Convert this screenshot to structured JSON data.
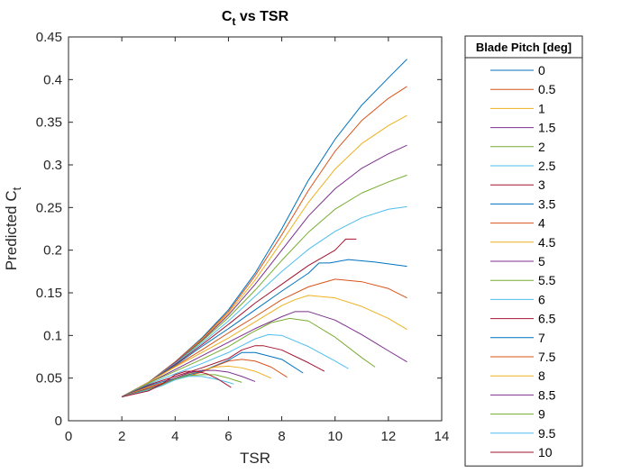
{
  "chart_data": {
    "type": "line",
    "title": "C",
    "title_subscript": "t",
    "title_suffix": " vs TSR",
    "xlabel": "TSR",
    "ylabel": "Predicted C",
    "ylabel_subscript": "t",
    "xlim": [
      0,
      14
    ],
    "ylim": [
      0,
      0.45
    ],
    "x_ticks": [
      0,
      2,
      4,
      6,
      8,
      10,
      12,
      14
    ],
    "y_ticks": [
      0,
      0.05,
      0.1,
      0.15,
      0.2,
      0.25,
      0.3,
      0.35,
      0.4,
      0.45
    ],
    "grid": false,
    "legend": {
      "title": "Blade Pitch [deg]",
      "placement": "outside-right"
    },
    "series": [
      {
        "name": "0",
        "color": "#0072BD",
        "points": [
          [
            2,
            0.028
          ],
          [
            3,
            0.045
          ],
          [
            4,
            0.069
          ],
          [
            5,
            0.097
          ],
          [
            6,
            0.13
          ],
          [
            7,
            0.173
          ],
          [
            8,
            0.225
          ],
          [
            9,
            0.282
          ],
          [
            10,
            0.33
          ],
          [
            11,
            0.37
          ],
          [
            12,
            0.402
          ],
          [
            12.7,
            0.424
          ]
        ]
      },
      {
        "name": "0.5",
        "color": "#D95319",
        "points": [
          [
            2,
            0.028
          ],
          [
            3,
            0.045
          ],
          [
            4,
            0.069
          ],
          [
            5,
            0.096
          ],
          [
            6,
            0.128
          ],
          [
            7,
            0.17
          ],
          [
            8,
            0.218
          ],
          [
            9,
            0.27
          ],
          [
            10,
            0.316
          ],
          [
            11,
            0.352
          ],
          [
            12,
            0.378
          ],
          [
            12.7,
            0.392
          ]
        ]
      },
      {
        "name": "1",
        "color": "#EDB120",
        "points": [
          [
            2,
            0.028
          ],
          [
            3,
            0.045
          ],
          [
            4,
            0.068
          ],
          [
            5,
            0.095
          ],
          [
            6,
            0.126
          ],
          [
            7,
            0.165
          ],
          [
            8,
            0.21
          ],
          [
            9,
            0.256
          ],
          [
            10,
            0.295
          ],
          [
            11,
            0.325
          ],
          [
            12,
            0.346
          ],
          [
            12.7,
            0.358
          ]
        ]
      },
      {
        "name": "1.5",
        "color": "#7E2F8E",
        "points": [
          [
            2,
            0.028
          ],
          [
            3,
            0.045
          ],
          [
            4,
            0.068
          ],
          [
            5,
            0.094
          ],
          [
            6,
            0.124
          ],
          [
            7,
            0.16
          ],
          [
            8,
            0.2
          ],
          [
            9,
            0.24
          ],
          [
            10,
            0.272
          ],
          [
            11,
            0.296
          ],
          [
            12,
            0.313
          ],
          [
            12.7,
            0.323
          ]
        ]
      },
      {
        "name": "2",
        "color": "#77AC30",
        "points": [
          [
            2,
            0.028
          ],
          [
            3,
            0.045
          ],
          [
            4,
            0.067
          ],
          [
            5,
            0.093
          ],
          [
            6,
            0.121
          ],
          [
            7,
            0.153
          ],
          [
            8,
            0.188
          ],
          [
            9,
            0.221
          ],
          [
            10,
            0.248
          ],
          [
            11,
            0.267
          ],
          [
            12,
            0.28
          ],
          [
            12.7,
            0.288
          ]
        ]
      },
      {
        "name": "2.5",
        "color": "#4DBEEE",
        "points": [
          [
            2,
            0.028
          ],
          [
            3,
            0.045
          ],
          [
            4,
            0.067
          ],
          [
            5,
            0.091
          ],
          [
            6,
            0.117
          ],
          [
            7,
            0.146
          ],
          [
            8,
            0.175
          ],
          [
            9,
            0.201
          ],
          [
            10,
            0.222
          ],
          [
            11,
            0.238
          ],
          [
            12,
            0.248
          ],
          [
            12.7,
            0.251
          ]
        ]
      },
      {
        "name": "3",
        "color": "#A2142F",
        "points": [
          [
            2,
            0.028
          ],
          [
            3,
            0.045
          ],
          [
            4,
            0.066
          ],
          [
            5,
            0.089
          ],
          [
            6,
            0.113
          ],
          [
            7,
            0.138
          ],
          [
            8,
            0.16
          ],
          [
            9,
            0.182
          ],
          [
            10,
            0.2
          ],
          [
            10.4,
            0.213
          ],
          [
            10.8,
            0.213
          ]
        ]
      },
      {
        "name": "3.5",
        "color": "#0072BD",
        "points": [
          [
            2,
            0.028
          ],
          [
            3,
            0.045
          ],
          [
            4,
            0.065
          ],
          [
            5,
            0.087
          ],
          [
            6,
            0.108
          ],
          [
            7,
            0.13
          ],
          [
            8,
            0.152
          ],
          [
            9,
            0.173
          ],
          [
            9.4,
            0.185
          ],
          [
            9.8,
            0.185
          ],
          [
            10.5,
            0.189
          ],
          [
            11.5,
            0.186
          ],
          [
            12.7,
            0.181
          ]
        ]
      },
      {
        "name": "4",
        "color": "#D95319",
        "points": [
          [
            2,
            0.028
          ],
          [
            3,
            0.045
          ],
          [
            4,
            0.064
          ],
          [
            5,
            0.083
          ],
          [
            6,
            0.103
          ],
          [
            7,
            0.122
          ],
          [
            8,
            0.142
          ],
          [
            9,
            0.157
          ],
          [
            10,
            0.166
          ],
          [
            11,
            0.163
          ],
          [
            12,
            0.155
          ],
          [
            12.7,
            0.144
          ]
        ]
      },
      {
        "name": "4.5",
        "color": "#EDB120",
        "points": [
          [
            2,
            0.028
          ],
          [
            3,
            0.045
          ],
          [
            4,
            0.063
          ],
          [
            5,
            0.08
          ],
          [
            6,
            0.097
          ],
          [
            7,
            0.116
          ],
          [
            8,
            0.135
          ],
          [
            8.5,
            0.142
          ],
          [
            9,
            0.147
          ],
          [
            10,
            0.144
          ],
          [
            11,
            0.134
          ],
          [
            12,
            0.12
          ],
          [
            12.7,
            0.107
          ]
        ]
      },
      {
        "name": "5",
        "color": "#7E2F8E",
        "points": [
          [
            2,
            0.028
          ],
          [
            3,
            0.044
          ],
          [
            4,
            0.06
          ],
          [
            5,
            0.076
          ],
          [
            6,
            0.092
          ],
          [
            7,
            0.108
          ],
          [
            8,
            0.122
          ],
          [
            8.5,
            0.128
          ],
          [
            9,
            0.128
          ],
          [
            10,
            0.118
          ],
          [
            11,
            0.101
          ],
          [
            12,
            0.082
          ],
          [
            12.7,
            0.069
          ]
        ]
      },
      {
        "name": "5.5",
        "color": "#77AC30",
        "points": [
          [
            2,
            0.028
          ],
          [
            3,
            0.044
          ],
          [
            4,
            0.058
          ],
          [
            5,
            0.072
          ],
          [
            6,
            0.087
          ],
          [
            6.8,
            0.102
          ],
          [
            7.6,
            0.115
          ],
          [
            8.3,
            0.12
          ],
          [
            9,
            0.117
          ],
          [
            10,
            0.098
          ],
          [
            11,
            0.074
          ],
          [
            11.5,
            0.063
          ]
        ]
      },
      {
        "name": "6",
        "color": "#4DBEEE",
        "points": [
          [
            2,
            0.028
          ],
          [
            3,
            0.043
          ],
          [
            4,
            0.055
          ],
          [
            5,
            0.067
          ],
          [
            6,
            0.08
          ],
          [
            7,
            0.096
          ],
          [
            7.5,
            0.101
          ],
          [
            8,
            0.1
          ],
          [
            9,
            0.087
          ],
          [
            10,
            0.07
          ],
          [
            10.5,
            0.061
          ]
        ]
      },
      {
        "name": "6.5",
        "color": "#A2142F",
        "points": [
          [
            2,
            0.028
          ],
          [
            3,
            0.042
          ],
          [
            4,
            0.052
          ],
          [
            5,
            0.062
          ],
          [
            6,
            0.073
          ],
          [
            6.5,
            0.083
          ],
          [
            7,
            0.088
          ],
          [
            7.3,
            0.088
          ],
          [
            8,
            0.083
          ],
          [
            9,
            0.068
          ],
          [
            9.6,
            0.058
          ]
        ]
      },
      {
        "name": "7",
        "color": "#0072BD",
        "points": [
          [
            2,
            0.028
          ],
          [
            3,
            0.041
          ],
          [
            4,
            0.05
          ],
          [
            5,
            0.058
          ],
          [
            6,
            0.071
          ],
          [
            6.5,
            0.08
          ],
          [
            7,
            0.08
          ],
          [
            8,
            0.072
          ],
          [
            8.8,
            0.056
          ]
        ]
      },
      {
        "name": "7.5",
        "color": "#D95319",
        "points": [
          [
            2,
            0.028
          ],
          [
            3,
            0.04
          ],
          [
            4,
            0.048
          ],
          [
            5,
            0.057
          ],
          [
            5.5,
            0.064
          ],
          [
            6,
            0.07
          ],
          [
            6.5,
            0.072
          ],
          [
            7,
            0.07
          ],
          [
            7.6,
            0.063
          ],
          [
            8.2,
            0.051
          ]
        ]
      },
      {
        "name": "8",
        "color": "#EDB120",
        "points": [
          [
            2,
            0.028
          ],
          [
            3,
            0.039
          ],
          [
            3.5,
            0.043
          ],
          [
            4,
            0.05
          ],
          [
            4.5,
            0.055
          ],
          [
            5,
            0.059
          ],
          [
            5.5,
            0.063
          ],
          [
            6,
            0.064
          ],
          [
            6.5,
            0.062
          ],
          [
            7,
            0.058
          ],
          [
            7.6,
            0.05
          ]
        ]
      },
      {
        "name": "8.5",
        "color": "#7E2F8E",
        "points": [
          [
            2,
            0.028
          ],
          [
            3,
            0.038
          ],
          [
            3.5,
            0.043
          ],
          [
            4,
            0.05
          ],
          [
            4.5,
            0.056
          ],
          [
            5,
            0.059
          ],
          [
            5.5,
            0.059
          ],
          [
            6,
            0.057
          ],
          [
            6.5,
            0.052
          ],
          [
            7,
            0.046
          ]
        ]
      },
      {
        "name": "9",
        "color": "#77AC30",
        "points": [
          [
            2,
            0.028
          ],
          [
            3,
            0.037
          ],
          [
            3.5,
            0.042
          ],
          [
            4,
            0.049
          ],
          [
            4.5,
            0.053
          ],
          [
            5,
            0.054
          ],
          [
            5.5,
            0.054
          ],
          [
            6,
            0.05
          ],
          [
            6.5,
            0.045
          ]
        ]
      },
      {
        "name": "9.5",
        "color": "#4DBEEE",
        "points": [
          [
            2,
            0.028
          ],
          [
            3,
            0.036
          ],
          [
            3.5,
            0.041
          ],
          [
            4,
            0.048
          ],
          [
            4.5,
            0.052
          ],
          [
            5,
            0.052
          ],
          [
            5.5,
            0.049
          ],
          [
            6,
            0.045
          ],
          [
            6.2,
            0.043
          ]
        ]
      },
      {
        "name": "10",
        "color": "#A2142F",
        "points": [
          [
            2,
            0.028
          ],
          [
            3,
            0.035
          ],
          [
            3.5,
            0.043
          ],
          [
            4,
            0.054
          ],
          [
            4.4,
            0.058
          ],
          [
            4.8,
            0.058
          ],
          [
            5.2,
            0.055
          ],
          [
            5.6,
            0.049
          ],
          [
            6,
            0.041
          ],
          [
            6.1,
            0.039
          ]
        ]
      }
    ]
  }
}
